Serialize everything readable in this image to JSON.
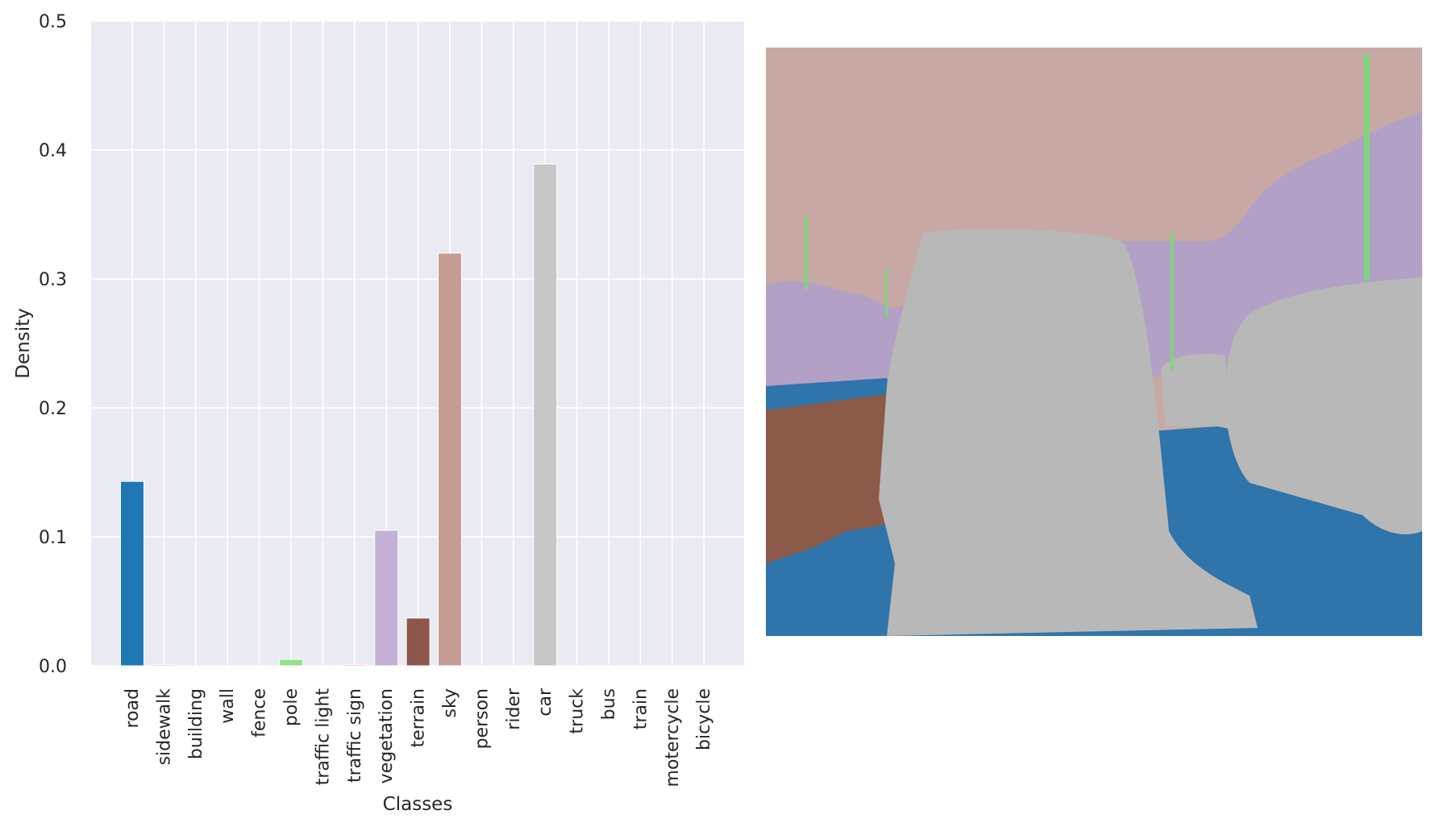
{
  "chart_data": {
    "type": "bar",
    "xlabel": "Classes",
    "ylabel": "Density",
    "ylim": [
      0,
      0.5
    ],
    "yticks": [
      "0.0",
      "0.1",
      "0.2",
      "0.3",
      "0.4",
      "0.5"
    ],
    "grid": true,
    "categories": [
      "road",
      "sidewalk",
      "building",
      "wall",
      "fence",
      "pole",
      "traffic light",
      "traffic sign",
      "vegetation",
      "terrain",
      "sky",
      "person",
      "rider",
      "car",
      "truck",
      "bus",
      "train",
      "motercycle",
      "bicycle"
    ],
    "values": [
      0.143,
      0.001,
      0.0,
      0.0,
      0.0,
      0.005,
      0.0,
      0.001,
      0.105,
      0.037,
      0.32,
      0.0,
      0.0,
      0.389,
      0.0,
      0.0,
      0.0,
      0.0,
      0.0
    ],
    "colors": [
      "#1f77b4",
      "#aec7e8",
      "#ff7f0e",
      "#ffbb78",
      "#2ca02c",
      "#98df8a",
      "#d62728",
      "#ff9896",
      "#c5b0d5",
      "#8c564b",
      "#c49c94",
      "#e377c2",
      "#f7b6d2",
      "#c7c7c7",
      "#dbdb8d",
      "#17becf",
      "#9edae5",
      "#7f7f7f",
      "#bcbd22"
    ]
  },
  "segmentation_image": {
    "colors": {
      "sky": "#c8a8a4",
      "vegetation": "#b3a0c6",
      "road": "#2f74aa",
      "terrain": "#8c5a48",
      "car": "#b8b8b8",
      "pole": "#7fd67a"
    }
  },
  "style": {
    "plot_bg": "#eaeaf2",
    "grid": "#ffffff",
    "text": "#262626"
  }
}
